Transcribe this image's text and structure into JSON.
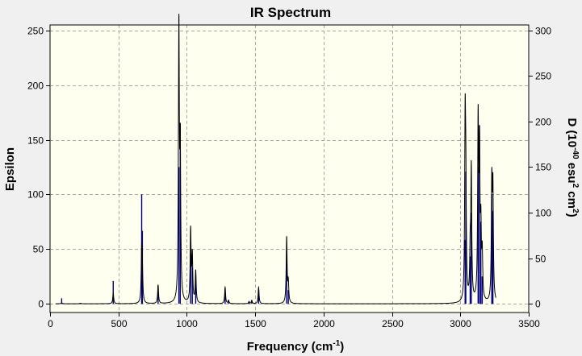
{
  "chart_data": {
    "type": "line",
    "title": "IR Spectrum",
    "xlabel": "Frequency (cm",
    "xlabel_sup": "-1",
    "xlabel_close": ")",
    "ylabel": "Epsilon",
    "y2label_parts": [
      "D (10",
      "-40",
      " esu",
      "2",
      " cm",
      "2",
      ")"
    ],
    "xlim": [
      0,
      3500
    ],
    "ylim": [
      -8,
      255
    ],
    "y2lim": [
      -9.6,
      306
    ],
    "xticks": [
      0,
      500,
      1000,
      1500,
      2000,
      2500,
      3000,
      3500
    ],
    "yticks": [
      0,
      50,
      100,
      150,
      200,
      250
    ],
    "y2ticks": [
      0,
      50,
      100,
      150,
      200,
      250,
      300
    ],
    "grid": true,
    "colors": {
      "plot_bg": "#fffff0",
      "frame": "#000000",
      "grid": "#a9a9a9",
      "spectrum": "#000000",
      "sticks": "#00007f"
    },
    "spectrum_width": 4,
    "peaks": [
      {
        "x": 85,
        "epsilon": 1,
        "d": 6
      },
      {
        "x": 222,
        "epsilon": 0.5,
        "d": 1
      },
      {
        "x": 462,
        "epsilon": 10,
        "d": 25
      },
      {
        "x": 670,
        "epsilon": 45,
        "d": 120
      },
      {
        "x": 675,
        "epsilon": 25,
        "d": 80
      },
      {
        "x": 790,
        "epsilon": 17,
        "d": 20
      },
      {
        "x": 942,
        "epsilon": 247,
        "d": 150
      },
      {
        "x": 952,
        "epsilon": 130,
        "d": 198
      },
      {
        "x": 1028,
        "epsilon": 66,
        "d": 55
      },
      {
        "x": 1040,
        "epsilon": 42,
        "d": 40
      },
      {
        "x": 1065,
        "epsilon": 29,
        "d": 30
      },
      {
        "x": 1280,
        "epsilon": 15,
        "d": 17
      },
      {
        "x": 1305,
        "epsilon": 3,
        "d": 3
      },
      {
        "x": 1455,
        "epsilon": 2,
        "d": 2
      },
      {
        "x": 1475,
        "epsilon": 3,
        "d": 4
      },
      {
        "x": 1525,
        "epsilon": 15,
        "d": 15
      },
      {
        "x": 1730,
        "epsilon": 60,
        "d": 50
      },
      {
        "x": 1742,
        "epsilon": 18,
        "d": 15
      },
      {
        "x": 3035,
        "epsilon": 153,
        "d": 70
      },
      {
        "x": 3040,
        "epsilon": 90,
        "d": 145
      },
      {
        "x": 3072,
        "epsilon": 41,
        "d": 52
      },
      {
        "x": 3080,
        "epsilon": 119,
        "d": 100
      },
      {
        "x": 3130,
        "epsilon": 160,
        "d": 150
      },
      {
        "x": 3140,
        "epsilon": 130,
        "d": 196
      },
      {
        "x": 3150,
        "epsilon": 60,
        "d": 90
      },
      {
        "x": 3160,
        "epsilon": 40,
        "d": 30
      },
      {
        "x": 3230,
        "epsilon": 104,
        "d": 120
      },
      {
        "x": 3238,
        "epsilon": 98,
        "d": 102
      }
    ]
  }
}
